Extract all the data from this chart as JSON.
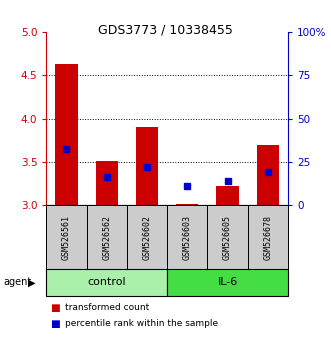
{
  "title": "GDS3773 / 10338455",
  "samples": [
    "GSM526561",
    "GSM526562",
    "GSM526602",
    "GSM526603",
    "GSM526605",
    "GSM526678"
  ],
  "groups": [
    "control",
    "control",
    "control",
    "IL-6",
    "IL-6",
    "IL-6"
  ],
  "red_values": [
    4.63,
    3.51,
    3.9,
    3.01,
    3.22,
    3.69
  ],
  "blue_values": [
    3.65,
    3.33,
    3.44,
    3.22,
    3.28,
    3.38
  ],
  "ymin": 3.0,
  "ymax": 5.0,
  "yticks": [
    3.0,
    3.5,
    4.0,
    4.5,
    5.0
  ],
  "y2_labels": [
    "0",
    "25",
    "50",
    "75",
    "100%"
  ],
  "red_color": "#cc0000",
  "blue_color": "#0000cc",
  "bar_base": 3.0,
  "group_colors": {
    "control": "#aaf0aa",
    "IL-6": "#44dd44"
  },
  "bar_width": 0.55,
  "sample_box_color": "#cccccc",
  "title_fontsize": 9,
  "tick_fontsize": 7.5,
  "sample_fontsize": 6,
  "group_fontsize": 8,
  "legend_fontsize": 6.5
}
